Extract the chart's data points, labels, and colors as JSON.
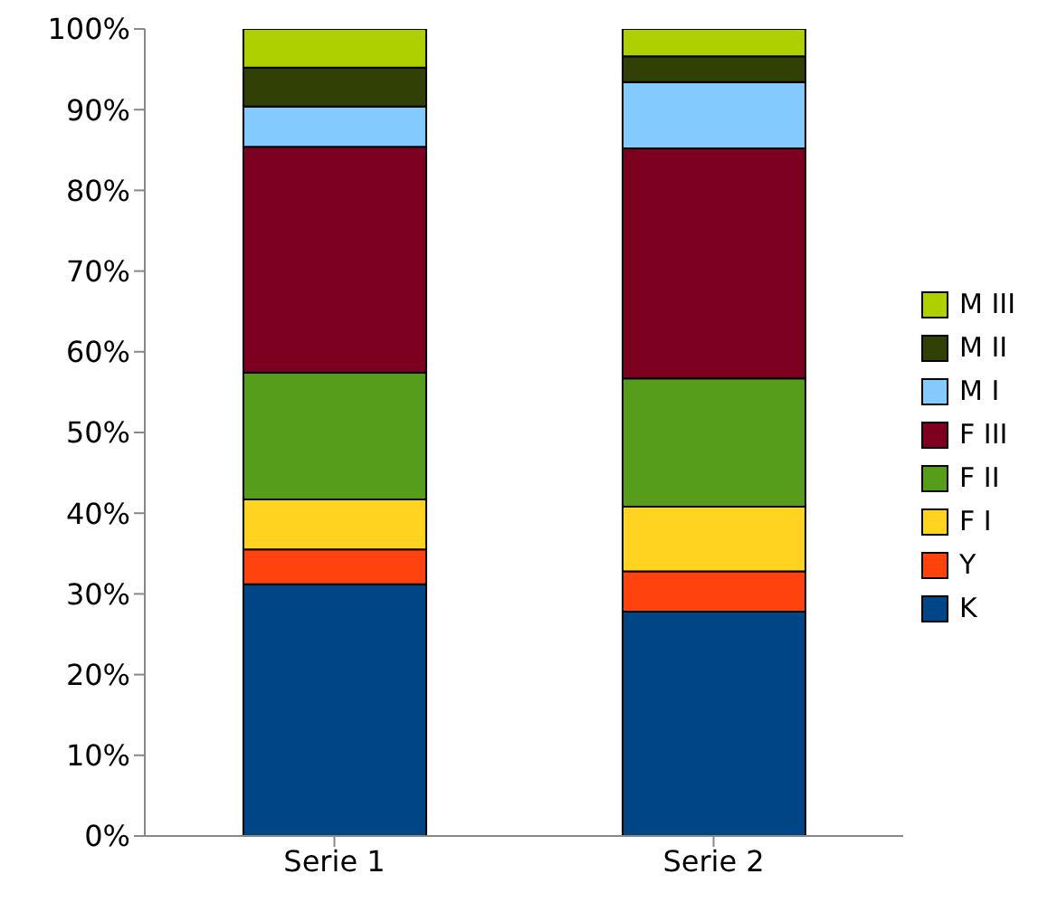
{
  "chart_data": {
    "type": "bar",
    "stacked": true,
    "categories": [
      "Serie 1",
      "Serie 2"
    ],
    "series": [
      {
        "name": "K",
        "color": "#004586",
        "values": [
          31.2,
          27.8
        ]
      },
      {
        "name": "Y",
        "color": "#ff420e",
        "values": [
          4.3,
          5.0
        ]
      },
      {
        "name": "F I",
        "color": "#ffd320",
        "values": [
          6.2,
          8.0
        ]
      },
      {
        "name": "F II",
        "color": "#579d1c",
        "values": [
          15.7,
          15.9
        ]
      },
      {
        "name": "F III",
        "color": "#7e0021",
        "values": [
          28.0,
          28.5
        ]
      },
      {
        "name": "M I",
        "color": "#83caff",
        "values": [
          5.0,
          8.2
        ]
      },
      {
        "name": "M II",
        "color": "#314004",
        "values": [
          4.8,
          3.2
        ]
      },
      {
        "name": "M III",
        "color": "#aecf00",
        "values": [
          4.8,
          3.4
        ]
      }
    ],
    "ylim": [
      0,
      100
    ],
    "yticks": [
      {
        "value": 0,
        "label": "0%"
      },
      {
        "value": 10,
        "label": "10%"
      },
      {
        "value": 20,
        "label": "20%"
      },
      {
        "value": 30,
        "label": "30%"
      },
      {
        "value": 40,
        "label": "40%"
      },
      {
        "value": 50,
        "label": "50%"
      },
      {
        "value": 60,
        "label": "60%"
      },
      {
        "value": 70,
        "label": "70%"
      },
      {
        "value": 80,
        "label": "80%"
      },
      {
        "value": 90,
        "label": "90%"
      },
      {
        "value": 100,
        "label": "100%"
      }
    ],
    "legend": "right"
  }
}
